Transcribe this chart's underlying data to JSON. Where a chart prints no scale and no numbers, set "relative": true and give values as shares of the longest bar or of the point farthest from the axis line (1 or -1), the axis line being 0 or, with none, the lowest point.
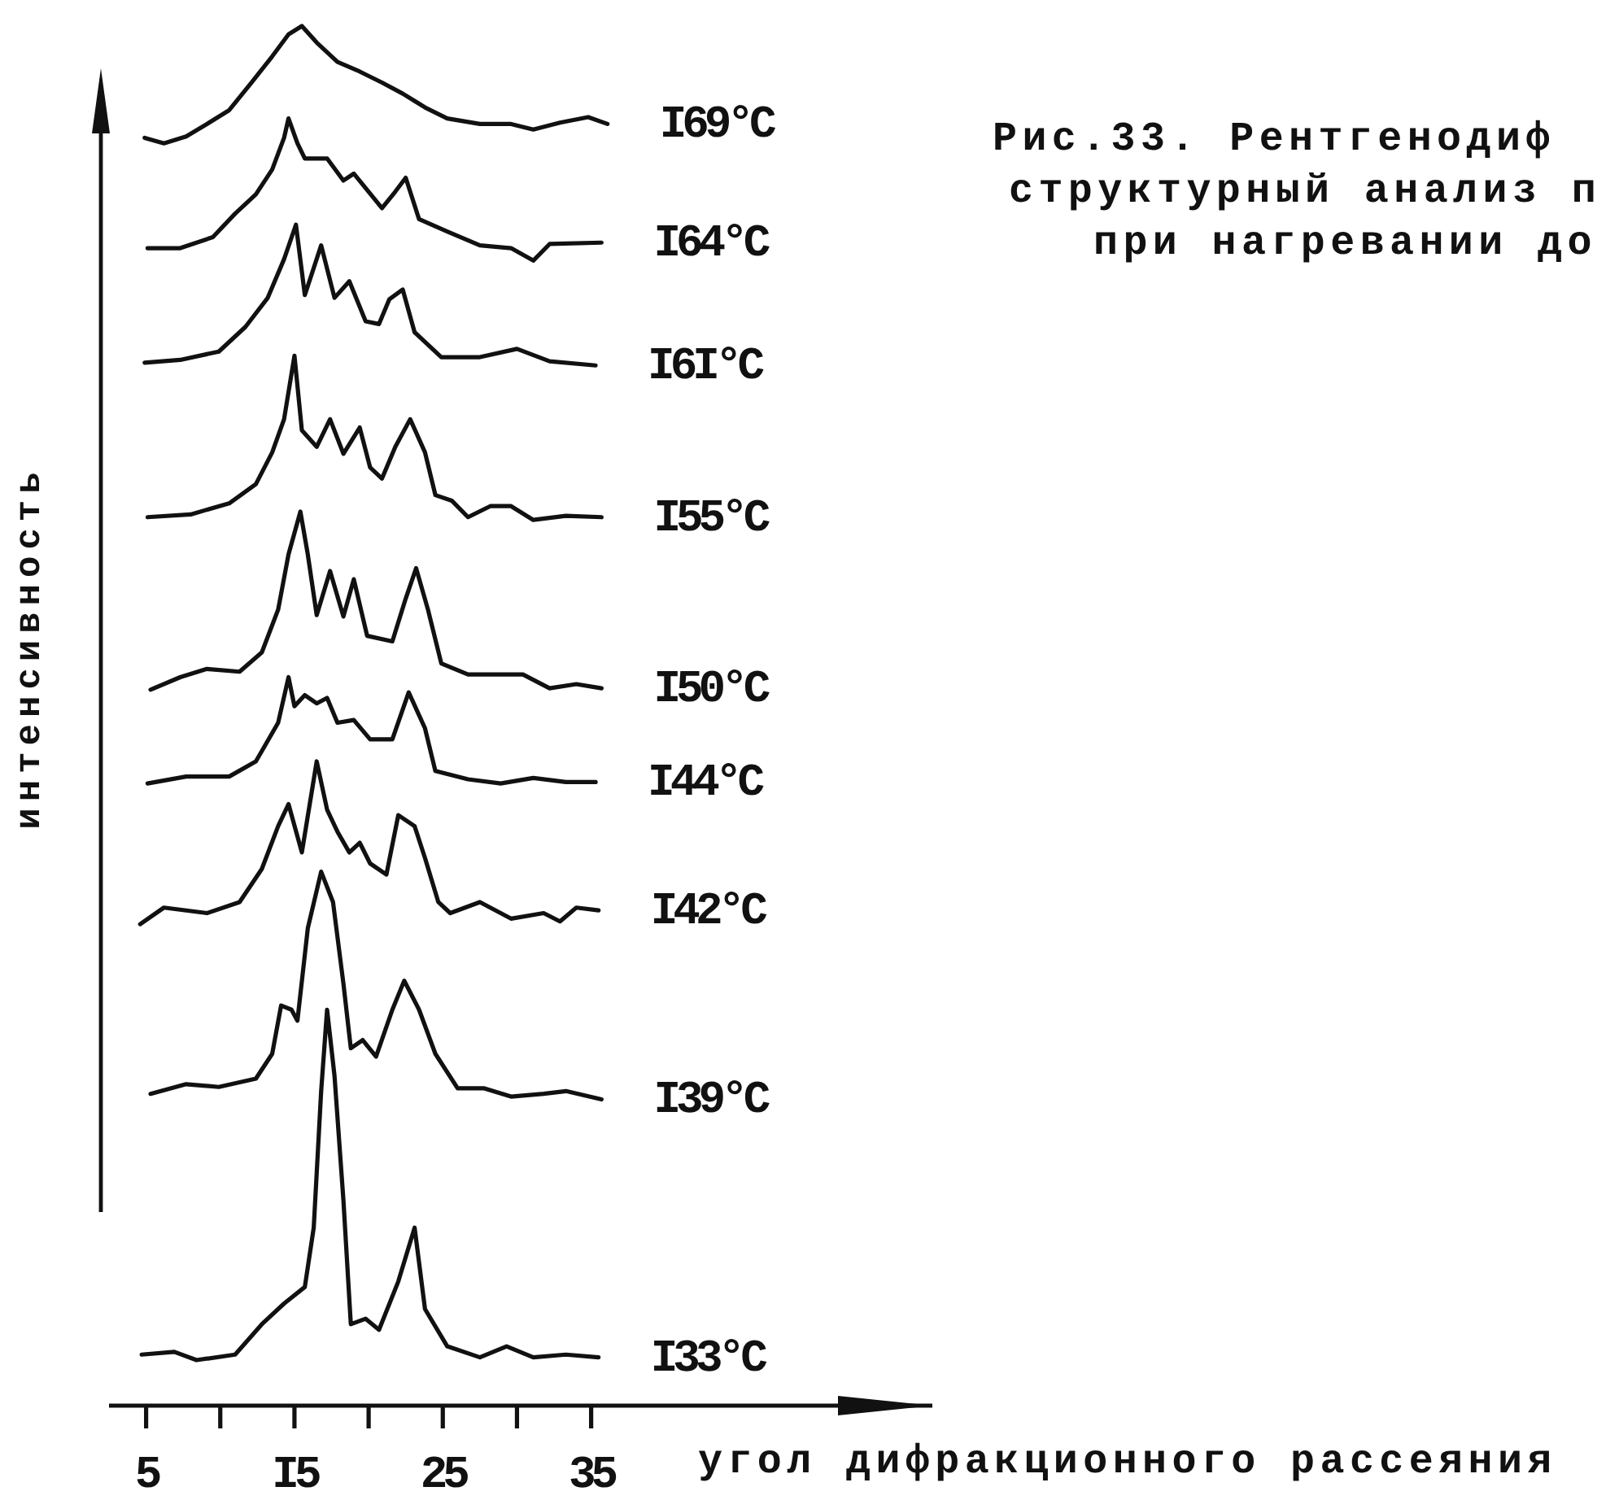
{
  "chart_data": {
    "type": "line",
    "relative": true,
    "title": "Рис.33. Рентгенодиф\nструктурный анализ п\nпри нагревании до",
    "xlabel": "угол дифракционного рассеяния",
    "ylabel": "интенсивность",
    "xlim": [
      2.5,
      58
    ],
    "xticks": [
      5,
      {
        "value": 10,
        "label": null
      },
      {
        "value": 15,
        "label": "I5"
      },
      {
        "value": 20,
        "label": null
      },
      25,
      {
        "value": 30,
        "label": null
      },
      35
    ],
    "series": [
      {
        "name": "I69°C",
        "color": "#111111",
        "x": [
          4.9,
          6.2,
          7.7,
          9.1,
          10.6,
          12.1,
          13.5,
          14.6,
          15.5,
          16.5,
          17.9,
          19.4,
          20.9,
          22.3,
          23.8,
          25.3,
          27.5,
          29.6,
          31.1,
          32.9,
          34.8,
          36.1
        ],
        "values": [
          0.919,
          0.915,
          0.92,
          0.929,
          0.939,
          0.959,
          0.978,
          0.994,
          1,
          0.988,
          0.974,
          0.967,
          0.959,
          0.951,
          0.941,
          0.933,
          0.929,
          0.929,
          0.925,
          0.93,
          0.934,
          0.929
        ]
      },
      {
        "name": "I64°C",
        "color": "#111111",
        "x": [
          5.1,
          7.3,
          9.5,
          11.0,
          12.4,
          13.5,
          14.3,
          14.6,
          15.2,
          15.7,
          17.2,
          18.3,
          19.0,
          20.9,
          21.8,
          22.5,
          23.4,
          25.3,
          27.5,
          29.6,
          31.1,
          32.2,
          35.7
        ],
        "values": [
          0.839,
          0.839,
          0.847,
          0.864,
          0.878,
          0.896,
          0.919,
          0.933,
          0.915,
          0.904,
          0.904,
          0.888,
          0.893,
          0.868,
          0.88,
          0.89,
          0.86,
          0.851,
          0.841,
          0.839,
          0.83,
          0.842,
          0.843
        ]
      },
      {
        "name": "I6I°C",
        "color": "#111111",
        "x": [
          4.9,
          7.3,
          9.9,
          11.7,
          13.2,
          14.3,
          15.1,
          15.7,
          16.8,
          17.7,
          18.7,
          19.8,
          20.7,
          21.4,
          22.3,
          23.1,
          24.9,
          27.5,
          30.0,
          32.2,
          35.3
        ],
        "values": [
          0.756,
          0.758,
          0.764,
          0.782,
          0.803,
          0.831,
          0.856,
          0.805,
          0.841,
          0.803,
          0.815,
          0.786,
          0.784,
          0.802,
          0.809,
          0.778,
          0.76,
          0.76,
          0.766,
          0.757,
          0.754
        ]
      },
      {
        "name": "I55°C",
        "color": "#111111",
        "x": [
          5.1,
          8.0,
          10.6,
          12.4,
          13.5,
          14.3,
          15.0,
          15.5,
          16.5,
          17.4,
          18.3,
          19.4,
          20.1,
          20.9,
          21.8,
          22.8,
          23.8,
          24.5,
          25.6,
          26.7,
          28.2,
          29.6,
          31.1,
          33.3,
          35.7
        ],
        "values": [
          0.644,
          0.646,
          0.654,
          0.668,
          0.691,
          0.715,
          0.761,
          0.707,
          0.695,
          0.715,
          0.69,
          0.709,
          0.68,
          0.672,
          0.695,
          0.715,
          0.691,
          0.66,
          0.656,
          0.644,
          0.652,
          0.652,
          0.642,
          0.645,
          0.644
        ]
      },
      {
        "name": "I50°C",
        "color": "#111111",
        "x": [
          5.3,
          7.3,
          9.1,
          11.3,
          12.8,
          13.9,
          14.6,
          15.4,
          15.9,
          16.5,
          17.4,
          18.3,
          19.0,
          19.9,
          21.6,
          22.5,
          23.2,
          24.0,
          24.9,
          26.7,
          28.5,
          30.4,
          32.2,
          34.0,
          35.7
        ],
        "values": [
          0.519,
          0.528,
          0.534,
          0.532,
          0.546,
          0.577,
          0.617,
          0.648,
          0.617,
          0.573,
          0.605,
          0.572,
          0.599,
          0.558,
          0.554,
          0.585,
          0.607,
          0.577,
          0.538,
          0.53,
          0.53,
          0.53,
          0.52,
          0.523,
          0.52
        ]
      },
      {
        "name": "I44°C",
        "color": "#111111",
        "x": [
          5.1,
          7.7,
          10.6,
          12.4,
          13.9,
          14.6,
          15.0,
          15.7,
          16.5,
          17.2,
          17.9,
          19.0,
          20.1,
          21.6,
          22.7,
          23.8,
          24.5,
          26.7,
          28.9,
          31.1,
          33.3,
          35.3
        ],
        "values": [
          0.451,
          0.456,
          0.456,
          0.467,
          0.495,
          0.528,
          0.507,
          0.515,
          0.509,
          0.513,
          0.495,
          0.497,
          0.483,
          0.483,
          0.517,
          0.491,
          0.46,
          0.454,
          0.451,
          0.455,
          0.452,
          0.452
        ]
      },
      {
        "name": "I42°C",
        "color": "#111111",
        "x": [
          4.6,
          6.2,
          9.1,
          11.3,
          12.8,
          13.9,
          14.6,
          15.5,
          16.5,
          17.2,
          17.9,
          18.7,
          19.4,
          20.1,
          21.2,
          22.0,
          23.1,
          23.8,
          24.7,
          25.5,
          27.5,
          29.6,
          31.8,
          32.9,
          34.0,
          35.5
        ],
        "values": [
          0.349,
          0.361,
          0.357,
          0.365,
          0.389,
          0.42,
          0.436,
          0.401,
          0.467,
          0.432,
          0.416,
          0.401,
          0.408,
          0.393,
          0.385,
          0.428,
          0.42,
          0.397,
          0.365,
          0.357,
          0.365,
          0.353,
          0.357,
          0.351,
          0.361,
          0.359
        ]
      },
      {
        "name": "I39°C",
        "color": "#111111",
        "x": [
          5.3,
          7.7,
          9.9,
          12.4,
          13.5,
          14.1,
          14.8,
          15.2,
          15.9,
          16.8,
          17.6,
          18.3,
          18.8,
          19.6,
          20.5,
          21.6,
          22.4,
          23.4,
          24.5,
          26.0,
          27.8,
          29.6,
          31.8,
          33.3,
          35.7
        ],
        "values": [
          0.226,
          0.233,
          0.231,
          0.237,
          0.255,
          0.29,
          0.287,
          0.279,
          0.346,
          0.387,
          0.365,
          0.306,
          0.259,
          0.265,
          0.253,
          0.287,
          0.308,
          0.287,
          0.255,
          0.23,
          0.23,
          0.224,
          0.226,
          0.228,
          0.222
        ]
      },
      {
        "name": "I33°C",
        "color": "#111111",
        "x": [
          4.7,
          6.9,
          8.4,
          11.0,
          12.8,
          14.3,
          15.7,
          16.3,
          16.8,
          17.2,
          17.7,
          18.3,
          18.8,
          19.8,
          20.7,
          22.0,
          23.1,
          23.8,
          25.3,
          27.5,
          29.3,
          31.1,
          33.3,
          35.5
        ],
        "values": [
          0.037,
          0.039,
          0.033,
          0.037,
          0.059,
          0.074,
          0.086,
          0.129,
          0.228,
          0.287,
          0.239,
          0.149,
          0.059,
          0.063,
          0.055,
          0.09,
          0.129,
          0.07,
          0.043,
          0.035,
          0.043,
          0.035,
          0.037,
          0.035
        ]
      }
    ]
  }
}
